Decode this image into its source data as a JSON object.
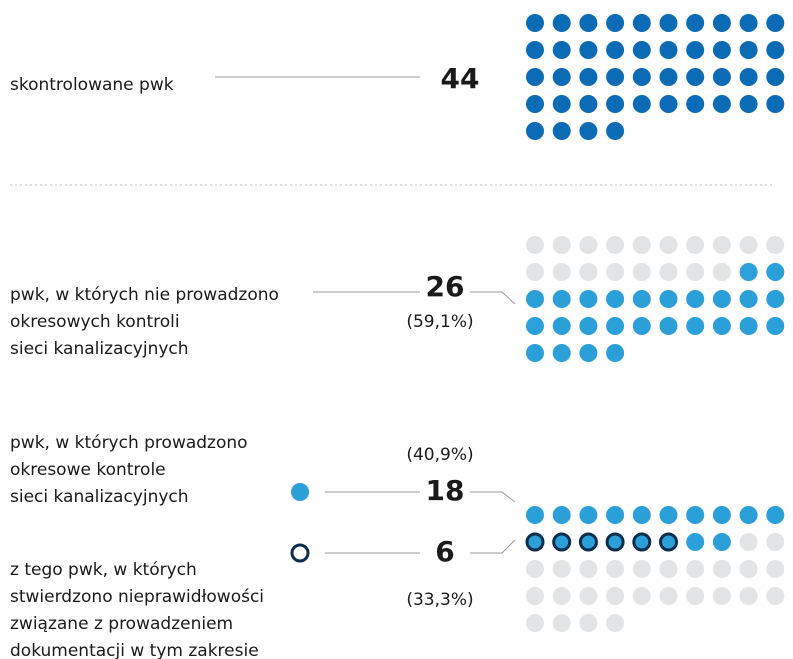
{
  "sections": [
    {
      "label_lines": [
        "skontrolowane pwk"
      ],
      "value": 44
    },
    {
      "label_lines": [
        "pwk, w których nie prowadzono",
        "okresowych kontroli",
        "sieci kanalizacyjnych"
      ],
      "value": 26,
      "share": "(59,1%)"
    },
    {
      "label_lines": [
        "pwk, w których prowadzono",
        "okresowe kontrole",
        "sieci kanalizacyjnych"
      ],
      "value": 18,
      "share": "(40,9%)"
    },
    {
      "label_lines": [
        "z tego pwk, w których",
        "stwierdzono nieprawidłowości",
        "związane z prowadzeniem",
        "dokumentacji w tym zakresie"
      ],
      "value": 6,
      "share": "(33,3%)"
    }
  ]
}
